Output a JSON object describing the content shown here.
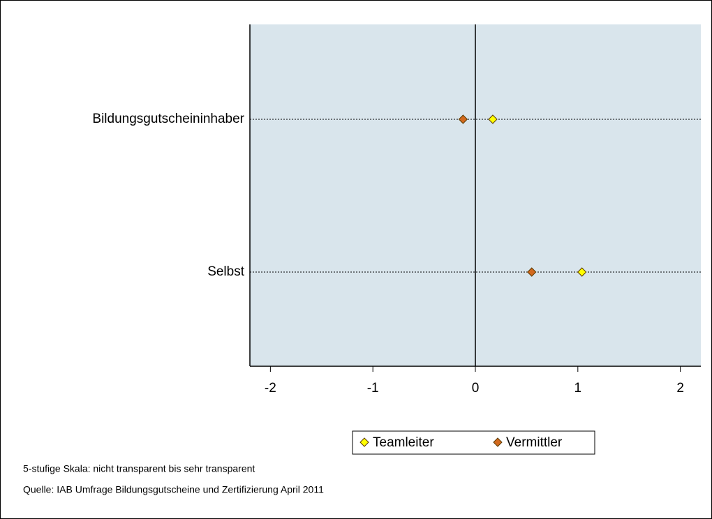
{
  "chart_data": {
    "type": "dot",
    "categories": [
      "Bildungsgutscheininhaber",
      "Selbst"
    ],
    "series": [
      {
        "name": "Teamleiter",
        "color": "#ffff00",
        "values": [
          0.17,
          1.04
        ]
      },
      {
        "name": "Vermittler",
        "color": "#d2691e",
        "values": [
          -0.12,
          0.55
        ]
      }
    ],
    "xlim": [
      -2.2,
      2.2
    ],
    "xticks": [
      -2,
      -1,
      0,
      1,
      2
    ],
    "reference_line": 0,
    "plot_background": "#d9e5ec",
    "notes": [
      "5-stufige Skala: nicht transparent bis sehr transparent",
      "Quelle: IAB Umfrage Bildungsgutscheine und Zertifizierung April 2011"
    ]
  }
}
